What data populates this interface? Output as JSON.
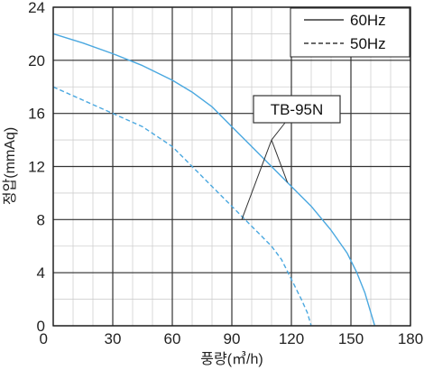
{
  "chart_data": {
    "type": "line",
    "xlabel": "풍량(㎥/h)",
    "ylabel": "정압(mmAq)",
    "xlim": [
      0,
      180
    ],
    "ylim": [
      0,
      24
    ],
    "xticks": [
      0,
      30,
      60,
      90,
      120,
      150,
      180
    ],
    "yticks": [
      0,
      4,
      8,
      12,
      16,
      20,
      24
    ],
    "grid": true,
    "legend_position": "top-right",
    "series": [
      {
        "name": "60Hz",
        "style": "solid",
        "color": "#4aa8e0",
        "x": [
          0,
          15,
          30,
          45,
          60,
          70,
          80,
          90,
          100,
          110,
          120,
          130,
          140,
          148,
          153,
          157,
          160,
          162
        ],
        "y": [
          22.0,
          21.3,
          20.5,
          19.6,
          18.5,
          17.6,
          16.5,
          15.0,
          13.5,
          12.0,
          10.5,
          9.0,
          7.2,
          5.5,
          4.0,
          2.5,
          1.0,
          0.0
        ]
      },
      {
        "name": "50Hz",
        "style": "dashed",
        "color": "#4aa8e0",
        "x": [
          0,
          15,
          30,
          45,
          60,
          70,
          80,
          90,
          100,
          110,
          115,
          120,
          125,
          128,
          130
        ],
        "y": [
          18.0,
          17.0,
          16.0,
          15.0,
          13.5,
          12.0,
          10.5,
          9.0,
          7.5,
          6.0,
          5.0,
          3.5,
          2.0,
          1.0,
          0.0
        ]
      }
    ],
    "annotations": [
      {
        "text": "TB-95N",
        "anchor": [
          110,
          14
        ],
        "targets": [
          [
            118,
            10.8
          ],
          [
            95,
            8
          ]
        ]
      }
    ]
  }
}
